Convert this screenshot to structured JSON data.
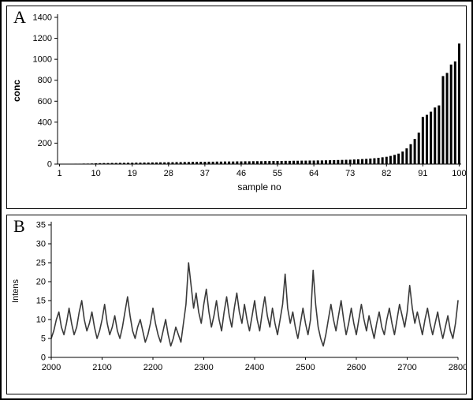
{
  "figure": {
    "panel_a_label": "A",
    "panel_b_label": "B"
  },
  "chart_data": [
    {
      "id": "A",
      "type": "bar",
      "title": "",
      "xlabel": "sample no",
      "ylabel": "conc",
      "ylim": [
        0,
        1400
      ],
      "yticks": [
        0,
        200,
        400,
        600,
        800,
        1000,
        1200,
        1400
      ],
      "xtick_labels": [
        "1",
        "10",
        "19",
        "28",
        "37",
        "46",
        "55",
        "64",
        "73",
        "82",
        "91",
        "100"
      ],
      "xtick_positions": [
        1,
        10,
        19,
        28,
        37,
        46,
        55,
        64,
        73,
        82,
        91,
        100
      ],
      "n_samples": 100,
      "grid": false,
      "legend": "none",
      "bar_color": "#000000",
      "axis_color": "#000000",
      "values": [
        2,
        2,
        3,
        3,
        4,
        4,
        5,
        5,
        6,
        8,
        9,
        10,
        10,
        11,
        11,
        12,
        12,
        13,
        13,
        14,
        14,
        15,
        15,
        16,
        16,
        17,
        17,
        18,
        18,
        19,
        19,
        20,
        20,
        21,
        21,
        22,
        22,
        23,
        23,
        24,
        24,
        25,
        25,
        25,
        26,
        26,
        27,
        27,
        28,
        28,
        28,
        29,
        29,
        30,
        30,
        30,
        31,
        31,
        32,
        32,
        33,
        33,
        34,
        34,
        35,
        35,
        36,
        37,
        38,
        39,
        40,
        41,
        42,
        44,
        46,
        48,
        50,
        53,
        56,
        60,
        65,
        70,
        78,
        88,
        100,
        120,
        150,
        190,
        240,
        300,
        450,
        470,
        500,
        540,
        560,
        840,
        870,
        950,
        980,
        1150
      ]
    },
    {
      "id": "B",
      "type": "line",
      "title": "",
      "xlabel": "",
      "ylabel": "Intens",
      "xlim": [
        2000,
        2800
      ],
      "ylim": [
        0,
        35
      ],
      "yticks": [
        0,
        5,
        10,
        15,
        20,
        25,
        30,
        35
      ],
      "xticks": [
        2000,
        2100,
        2200,
        2300,
        2400,
        2500,
        2600,
        2700,
        2800
      ],
      "grid": false,
      "legend": "none",
      "line_color": "#3a3a3a",
      "axis_color": "#000000",
      "x_start": 2000,
      "x_step": 5,
      "y": [
        5,
        7,
        10,
        12,
        8,
        6,
        9,
        13,
        9,
        6,
        8,
        12,
        15,
        10,
        7,
        9,
        12,
        8,
        5,
        7,
        10,
        14,
        9,
        6,
        8,
        11,
        7,
        5,
        8,
        12,
        16,
        11,
        7,
        5,
        8,
        10,
        7,
        4,
        6,
        9,
        13,
        9,
        6,
        4,
        7,
        10,
        6,
        3,
        5,
        8,
        6,
        4,
        9,
        14,
        25,
        19,
        13,
        17,
        12,
        9,
        14,
        18,
        12,
        8,
        11,
        15,
        10,
        7,
        12,
        16,
        11,
        8,
        13,
        17,
        12,
        9,
        14,
        10,
        7,
        11,
        15,
        10,
        7,
        12,
        16,
        11,
        8,
        13,
        9,
        6,
        10,
        14,
        22,
        13,
        9,
        12,
        8,
        5,
        9,
        13,
        9,
        6,
        10,
        23,
        14,
        8,
        5,
        3,
        6,
        10,
        14,
        10,
        7,
        11,
        15,
        10,
        6,
        9,
        13,
        9,
        6,
        10,
        14,
        10,
        7,
        11,
        8,
        5,
        9,
        12,
        8,
        6,
        10,
        13,
        9,
        6,
        10,
        14,
        11,
        8,
        12,
        19,
        13,
        9,
        12,
        9,
        6,
        10,
        13,
        9,
        6,
        9,
        12,
        8,
        5,
        8,
        11,
        7,
        5,
        9,
        15
      ]
    }
  ]
}
